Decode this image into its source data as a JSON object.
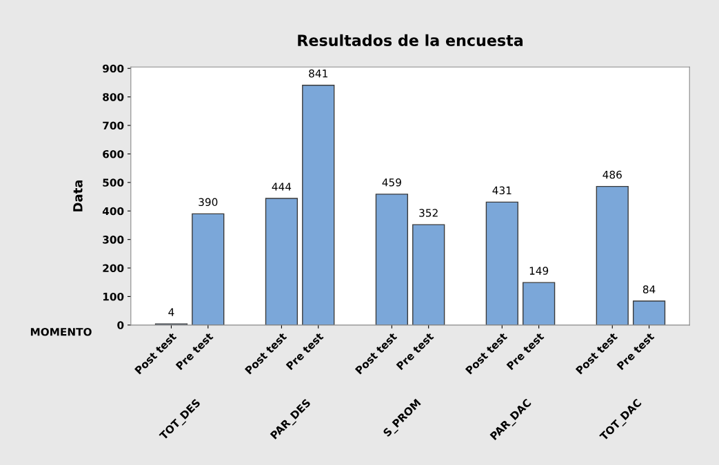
{
  "chart_data": {
    "type": "bar",
    "title": "Resultados de la encuesta",
    "ylabel": "Data",
    "categories": [
      "Post test",
      "Pre test",
      null,
      "Post test",
      "Pre test",
      null,
      "Post test",
      "Pre test",
      null,
      "Post test",
      "Pre test",
      null,
      "Post test",
      "Pre test"
    ],
    "values": [
      4,
      390,
      null,
      444,
      841,
      null,
      459,
      352,
      null,
      431,
      149,
      null,
      486,
      84
    ],
    "color": "#7ba7d9",
    "annotations": [
      "MOMENTO",
      "TOT_DES",
      "PAR_DES",
      "S_PROM",
      "PAR_DAC",
      "TOT_DAC"
    ],
    "ylim": [
      0,
      905
    ],
    "yticks": [
      0,
      100,
      200,
      300,
      400,
      500,
      600,
      700,
      800,
      900
    ],
    "data_labels": true,
    "grid": false,
    "legend": false
  }
}
